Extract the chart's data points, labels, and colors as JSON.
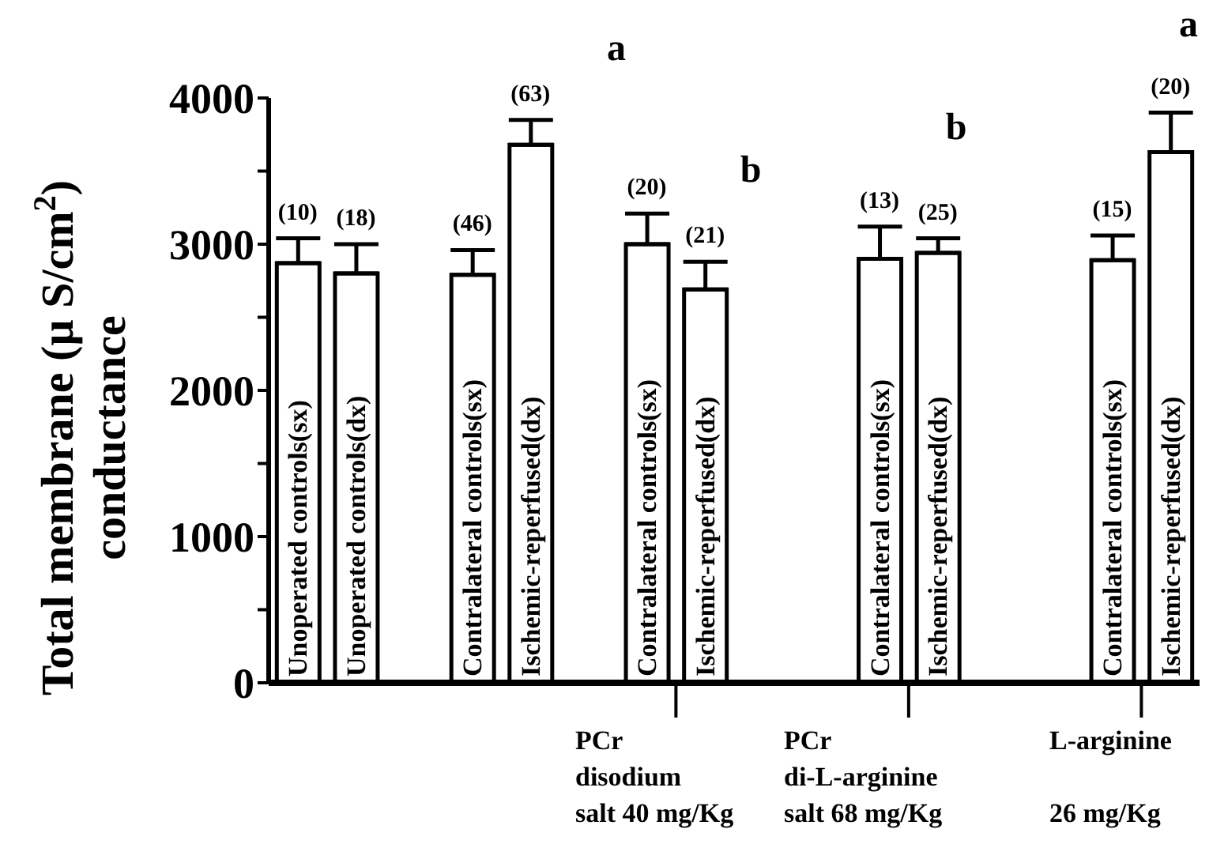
{
  "chart_data": {
    "type": "bar",
    "ylabel": "Total membrane (µ S/cm$^{2}$)\nconductance",
    "categories": [
      "Unoperated controls(sx)",
      "Unoperated controls(dx)",
      null,
      "Contralateral controls(sx)",
      "Ischemic-reperfused(dx)",
      null,
      "Contralateral controls(sx)",
      "Ischemic-reperfused(dx)",
      null,
      null,
      "Contralateral controls(sx)",
      "Ischemic-reperfused(dx)",
      null,
      null,
      "Contralateral controls(sx)",
      "Ischemic-reperfused(dx)"
    ],
    "values": [
      2870,
      2800,
      null,
      2790,
      3680,
      null,
      3000,
      2690,
      null,
      null,
      2900,
      2940,
      null,
      null,
      2890,
      3630
    ],
    "errors": [
      [
        2870,
        3040
      ],
      [
        2800,
        3000
      ],
      null,
      [
        2790,
        2960
      ],
      [
        3680,
        3850
      ],
      null,
      [
        3000,
        3210
      ],
      [
        2690,
        2880
      ],
      null,
      null,
      [
        2900,
        3120
      ],
      [
        2940,
        3040
      ],
      null,
      null,
      [
        2890,
        3060
      ],
      [
        3630,
        3900
      ]
    ],
    "color": "#ffffff",
    "ylim": [
      0,
      4000
    ],
    "yticks": [
      0,
      {
        "value": 500,
        "label": null
      },
      1000,
      {
        "value": 1500,
        "label": null
      },
      2000,
      {
        "value": 2500,
        "label": null
      },
      3000,
      {
        "value": 3500,
        "label": null
      },
      4000
    ],
    "annotations": [
      "a",
      "b",
      "b",
      "a",
      "PCr\ndisodium\nsalt 40 mg/Kg",
      "PCr\ndi-L-arginine\nsalt 68 mg/Kg",
      "L-arginine\n\n26 mg/Kg",
      "(10)",
      "(18)",
      "(46)",
      "(63)",
      "(20)",
      "(21)",
      "(13)",
      "(25)",
      "(15)",
      "(20)"
    ]
  }
}
